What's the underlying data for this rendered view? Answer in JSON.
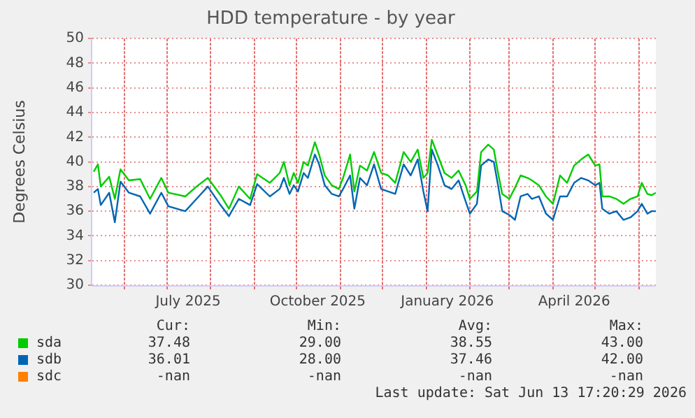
{
  "chart_data": {
    "type": "line",
    "title": "HDD temperature - by year",
    "ylabel": "Degrees Celsius",
    "x": [
      "2025-05-10",
      "2025-05-13",
      "2025-05-15",
      "2025-05-21",
      "2025-05-25",
      "2025-05-29",
      "2025-06-04",
      "2025-06-12",
      "2025-06-19",
      "2025-06-27",
      "2025-07-02",
      "2025-07-14",
      "2025-07-22",
      "2025-07-30",
      "2025-08-08",
      "2025-08-14",
      "2025-08-21",
      "2025-08-29",
      "2025-09-03",
      "2025-09-12",
      "2025-09-19",
      "2025-09-22",
      "2025-09-26",
      "2025-09-29",
      "2025-10-02",
      "2025-10-06",
      "2025-10-09",
      "2025-10-14",
      "2025-10-17",
      "2025-10-21",
      "2025-10-26",
      "2025-10-31",
      "2025-11-03",
      "2025-11-08",
      "2025-11-11",
      "2025-11-15",
      "2025-11-20",
      "2025-11-25",
      "2025-11-30",
      "2025-12-05",
      "2025-12-10",
      "2025-12-16",
      "2025-12-21",
      "2025-12-26",
      "2025-12-30",
      "2026-01-02",
      "2026-01-05",
      "2026-01-09",
      "2026-01-14",
      "2026-01-19",
      "2026-01-24",
      "2026-01-29",
      "2026-02-01",
      "2026-02-06",
      "2026-02-09",
      "2026-02-14",
      "2026-02-18",
      "2026-02-21",
      "2026-02-24",
      "2026-03-01",
      "2026-03-05",
      "2026-03-09",
      "2026-03-14",
      "2026-03-17",
      "2026-03-22",
      "2026-03-27",
      "2026-04-01",
      "2026-04-06",
      "2026-04-11",
      "2026-04-16",
      "2026-04-21",
      "2026-04-26",
      "2026-05-01",
      "2026-05-04",
      "2026-05-06",
      "2026-05-11",
      "2026-05-16",
      "2026-05-21",
      "2026-05-26",
      "2026-05-31",
      "2026-06-03",
      "2026-06-07",
      "2026-06-10",
      "2026-06-13"
    ],
    "series": [
      {
        "name": "sda",
        "color": "#00cc00",
        "values": [
          39.2,
          39.8,
          38.0,
          38.8,
          37.0,
          39.4,
          38.5,
          38.6,
          37.0,
          38.7,
          37.5,
          37.2,
          38.0,
          38.7,
          37.3,
          36.2,
          38.0,
          37.0,
          39.0,
          38.3,
          39.1,
          40.0,
          38.1,
          39.1,
          38.3,
          40.0,
          39.7,
          41.6,
          40.6,
          38.9,
          38.1,
          37.8,
          38.7,
          40.6,
          37.6,
          39.7,
          39.3,
          40.8,
          39.1,
          38.9,
          38.3,
          40.8,
          40.0,
          41.0,
          38.7,
          39.1,
          41.8,
          40.6,
          39.1,
          38.7,
          39.3,
          38.1,
          37.0,
          37.6,
          40.8,
          41.4,
          41.0,
          39.1,
          37.4,
          37.0,
          37.9,
          38.9,
          38.7,
          38.5,
          38.1,
          37.2,
          36.6,
          38.9,
          38.3,
          39.7,
          40.2,
          40.6,
          39.7,
          39.8,
          37.2,
          37.2,
          37.0,
          36.6,
          37.0,
          37.2,
          38.3,
          37.4,
          37.3,
          37.5
        ]
      },
      {
        "name": "sdb",
        "color": "#0066b3",
        "values": [
          37.5,
          37.8,
          36.5,
          37.5,
          35.1,
          38.4,
          37.5,
          37.2,
          35.8,
          37.5,
          36.4,
          36.0,
          37.0,
          38.0,
          36.5,
          35.6,
          37.0,
          36.5,
          38.2,
          37.2,
          37.8,
          38.7,
          37.4,
          38.1,
          37.6,
          39.1,
          38.7,
          40.6,
          39.8,
          38.1,
          37.4,
          37.2,
          37.8,
          38.9,
          36.2,
          38.7,
          38.1,
          39.8,
          37.8,
          37.6,
          37.4,
          39.8,
          38.9,
          40.2,
          37.6,
          36.0,
          41.0,
          39.8,
          38.1,
          37.8,
          38.5,
          36.8,
          35.8,
          36.6,
          39.7,
          40.2,
          40.0,
          38.1,
          36.0,
          35.7,
          35.3,
          37.2,
          37.4,
          37.0,
          37.2,
          35.8,
          35.3,
          37.2,
          37.2,
          38.3,
          38.7,
          38.5,
          38.1,
          38.3,
          36.2,
          35.8,
          36.0,
          35.3,
          35.5,
          36.0,
          36.6,
          35.8,
          36.0,
          36.0
        ]
      },
      {
        "name": "sdc",
        "color": "#ff8000",
        "values": [
          null,
          null,
          null,
          null,
          null,
          null,
          null,
          null,
          null,
          null,
          null,
          null,
          null,
          null,
          null,
          null,
          null,
          null,
          null,
          null,
          null,
          null,
          null,
          null,
          null,
          null,
          null,
          null,
          null,
          null,
          null,
          null,
          null,
          null,
          null,
          null,
          null,
          null,
          null,
          null,
          null,
          null,
          null,
          null,
          null,
          null,
          null,
          null,
          null,
          null,
          null,
          null,
          null,
          null,
          null,
          null,
          null,
          null,
          null,
          null,
          null,
          null,
          null,
          null,
          null,
          null,
          null,
          null,
          null,
          null,
          null,
          null,
          null,
          null,
          null,
          null,
          null,
          null,
          null,
          null,
          null,
          null,
          null,
          null
        ]
      }
    ],
    "xlim": [
      "2025-05-09",
      "2026-06-13"
    ],
    "xticks": [
      {
        "value": "2025-06-01",
        "label": null
      },
      {
        "value": "2025-07-01",
        "label": null
      },
      {
        "value": "2025-07-16",
        "label": "July 2025"
      },
      {
        "value": "2025-08-01",
        "label": null
      },
      {
        "value": "2025-09-01",
        "label": null
      },
      {
        "value": "2025-10-01",
        "label": null
      },
      {
        "value": "2025-10-16",
        "label": "October 2025"
      },
      {
        "value": "2025-11-01",
        "label": null
      },
      {
        "value": "2025-12-01",
        "label": null
      },
      {
        "value": "2026-01-01",
        "label": null
      },
      {
        "value": "2026-01-16",
        "label": "January 2026"
      },
      {
        "value": "2026-02-01",
        "label": null
      },
      {
        "value": "2026-03-01",
        "label": null
      },
      {
        "value": "2026-04-01",
        "label": null
      },
      {
        "value": "2026-04-16",
        "label": "April 2026"
      },
      {
        "value": "2026-05-01",
        "label": null
      },
      {
        "value": "2026-06-01",
        "label": null
      }
    ],
    "ylim": [
      30,
      50
    ],
    "yticks": [
      30,
      32,
      34,
      36,
      38,
      40,
      42,
      44,
      46,
      48,
      50
    ],
    "grid": true,
    "legend": "bottom",
    "marker": "none",
    "line_style": "solid",
    "annotations": [
      "Cur:",
      "Min:",
      "Avg:",
      "Max:",
      "37.48",
      "29.00",
      "38.55",
      "43.00",
      "36.01",
      "28.00",
      "37.46",
      "42.00",
      "-nan",
      "-nan",
      "-nan",
      "-nan",
      "Last update: Sat Jun 13 17:20:29 2026"
    ]
  }
}
